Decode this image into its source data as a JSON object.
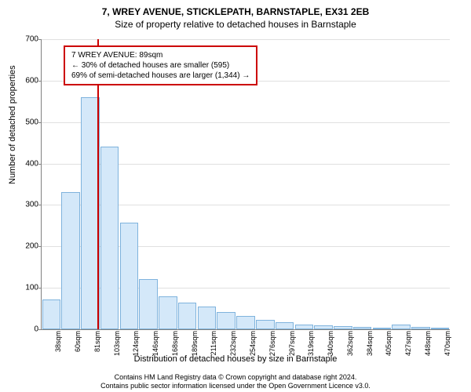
{
  "title1": "7, WREY AVENUE, STICKLEPATH, BARNSTAPLE, EX31 2EB",
  "title2": "Size of property relative to detached houses in Barnstaple",
  "ylabel": "Number of detached properties",
  "xlabel": "Distribution of detached houses by size in Barnstaple",
  "footer1": "Contains HM Land Registry data © Crown copyright and database right 2024.",
  "footer2": "Contains public sector information licensed under the Open Government Licence v3.0.",
  "info_line1": "7 WREY AVENUE: 89sqm",
  "info_line2": "← 30% of detached houses are smaller (595)",
  "info_line3": "69% of semi-detached houses are larger (1,344) →",
  "chart": {
    "type": "bar",
    "ylim": [
      0,
      700
    ],
    "ytick_step": 100,
    "bar_fill": "#d4e8f9",
    "bar_border": "#7fb3dd",
    "grid_color": "#e0e0e0",
    "axis_color": "#808080",
    "marker_color": "#cc0000",
    "marker_x": 89,
    "x_start": 38,
    "x_step": 21.6,
    "categories": [
      "38sqm",
      "60sqm",
      "81sqm",
      "103sqm",
      "124sqm",
      "146sqm",
      "168sqm",
      "189sqm",
      "211sqm",
      "232sqm",
      "254sqm",
      "276sqm",
      "297sqm",
      "319sqm",
      "340sqm",
      "362sqm",
      "384sqm",
      "405sqm",
      "427sqm",
      "448sqm",
      "470sqm"
    ],
    "values": [
      72,
      332,
      560,
      440,
      258,
      122,
      80,
      65,
      55,
      42,
      32,
      22,
      18,
      12,
      10,
      8,
      6,
      4,
      12,
      6,
      4
    ]
  }
}
